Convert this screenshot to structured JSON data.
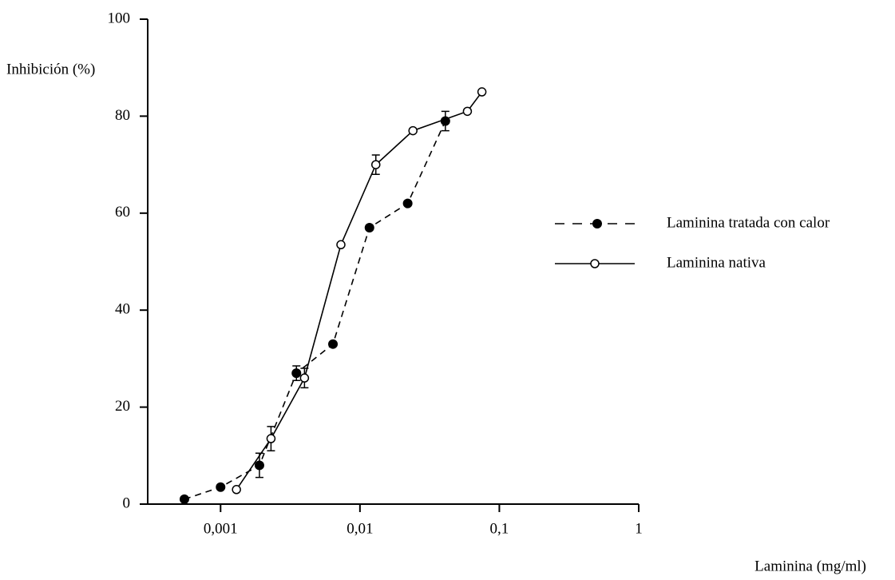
{
  "chart_data": {
    "type": "line",
    "y_label": "Inhibición (%)",
    "x_label": "Laminina (mg/ml)",
    "x_scale": "log",
    "xlim": [
      0.0003,
      1
    ],
    "xticks": [
      {
        "value": 0.001,
        "label": "0,001"
      },
      {
        "value": 0.01,
        "label": "0,01"
      },
      {
        "value": 0.1,
        "label": "0,1"
      },
      1
    ],
    "ylim": [
      0,
      100
    ],
    "yticks": [
      0,
      20,
      40,
      60,
      80,
      100
    ],
    "legend": "right",
    "series": [
      {
        "name": "Laminina tratada con calor",
        "color": "#000000",
        "marker": "filled",
        "linestyle": "dashed",
        "x": [
          0.00055,
          0.001,
          0.0019,
          0.0035,
          0.0064,
          0.0117,
          0.022,
          0.041
        ],
        "values": [
          1,
          3.5,
          8,
          27,
          33,
          57,
          62,
          79
        ],
        "errors": [
          null,
          null,
          2.5,
          1.5,
          null,
          null,
          null,
          2
        ]
      },
      {
        "name": "Laminina nativa",
        "color": "#000000",
        "marker": "open",
        "linestyle": "solid",
        "x": [
          0.0013,
          0.0023,
          0.004,
          0.0073,
          0.013,
          0.024,
          0.059,
          0.075
        ],
        "values": [
          3,
          13.5,
          26,
          53.5,
          70,
          77,
          81,
          85
        ],
        "errors": [
          null,
          2.5,
          2,
          null,
          2,
          null,
          null,
          null
        ]
      }
    ]
  }
}
